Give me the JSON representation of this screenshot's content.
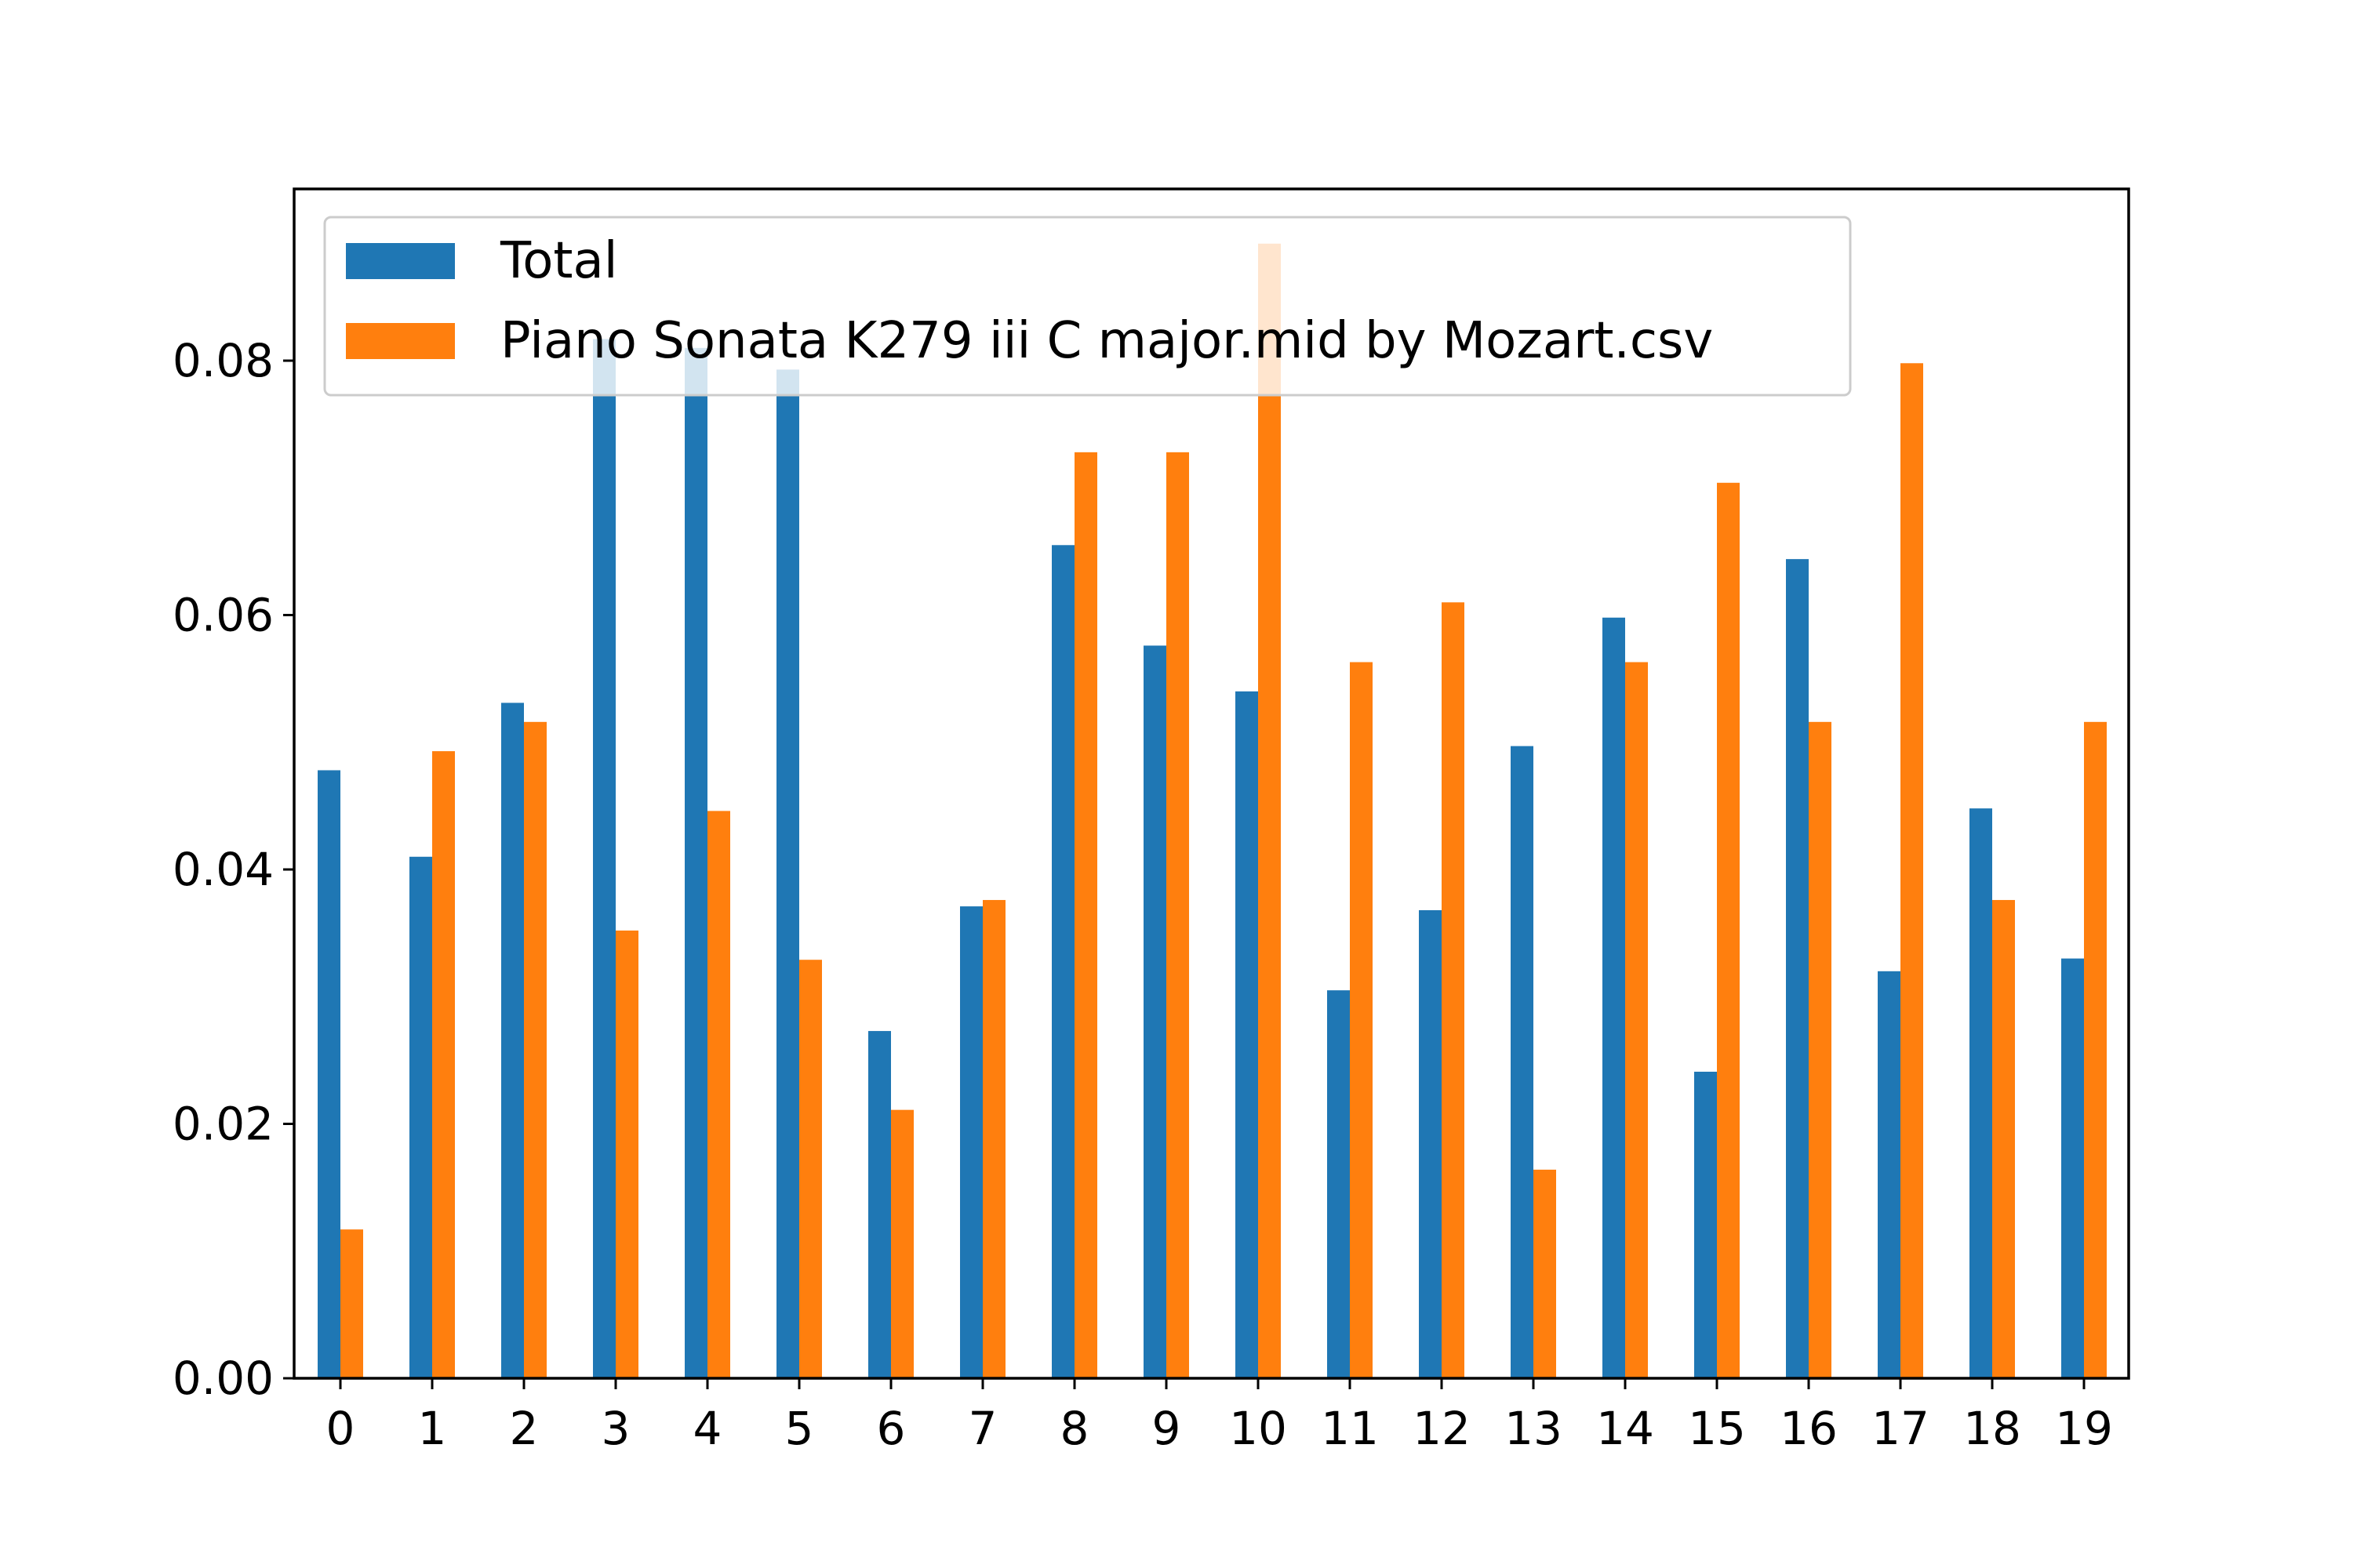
{
  "chart_data": {
    "type": "bar",
    "title": "",
    "xlabel": "",
    "ylabel": "",
    "categories": [
      "0",
      "1",
      "2",
      "3",
      "4",
      "5",
      "6",
      "7",
      "8",
      "9",
      "10",
      "11",
      "12",
      "13",
      "14",
      "15",
      "16",
      "17",
      "18",
      "19"
    ],
    "ylim": [
      0,
      0.0935
    ],
    "yticks": [
      0.0,
      0.02,
      0.04,
      0.06,
      0.08
    ],
    "ytick_labels": [
      "0.00",
      "0.02",
      "0.04",
      "0.06",
      "0.08"
    ],
    "grid": false,
    "legend_position": "upper-left",
    "series": [
      {
        "name": "Total",
        "color": "#1f77b4",
        "values": [
          0.0478,
          0.041,
          0.0531,
          0.0817,
          0.081,
          0.0793,
          0.0273,
          0.0371,
          0.0655,
          0.0576,
          0.054,
          0.0305,
          0.0368,
          0.0497,
          0.0598,
          0.0241,
          0.0644,
          0.032,
          0.0448,
          0.033
        ]
      },
      {
        "name": "Piano Sonata K279 iii C major.mid by Mozart.csv",
        "color": "#ff7f0e",
        "values": [
          0.0117,
          0.0493,
          0.0516,
          0.0352,
          0.0446,
          0.0329,
          0.0211,
          0.0376,
          0.0728,
          0.0728,
          0.0892,
          0.0563,
          0.061,
          0.0164,
          0.0563,
          0.0704,
          0.0516,
          0.0798,
          0.0376,
          0.0516
        ]
      }
    ]
  }
}
